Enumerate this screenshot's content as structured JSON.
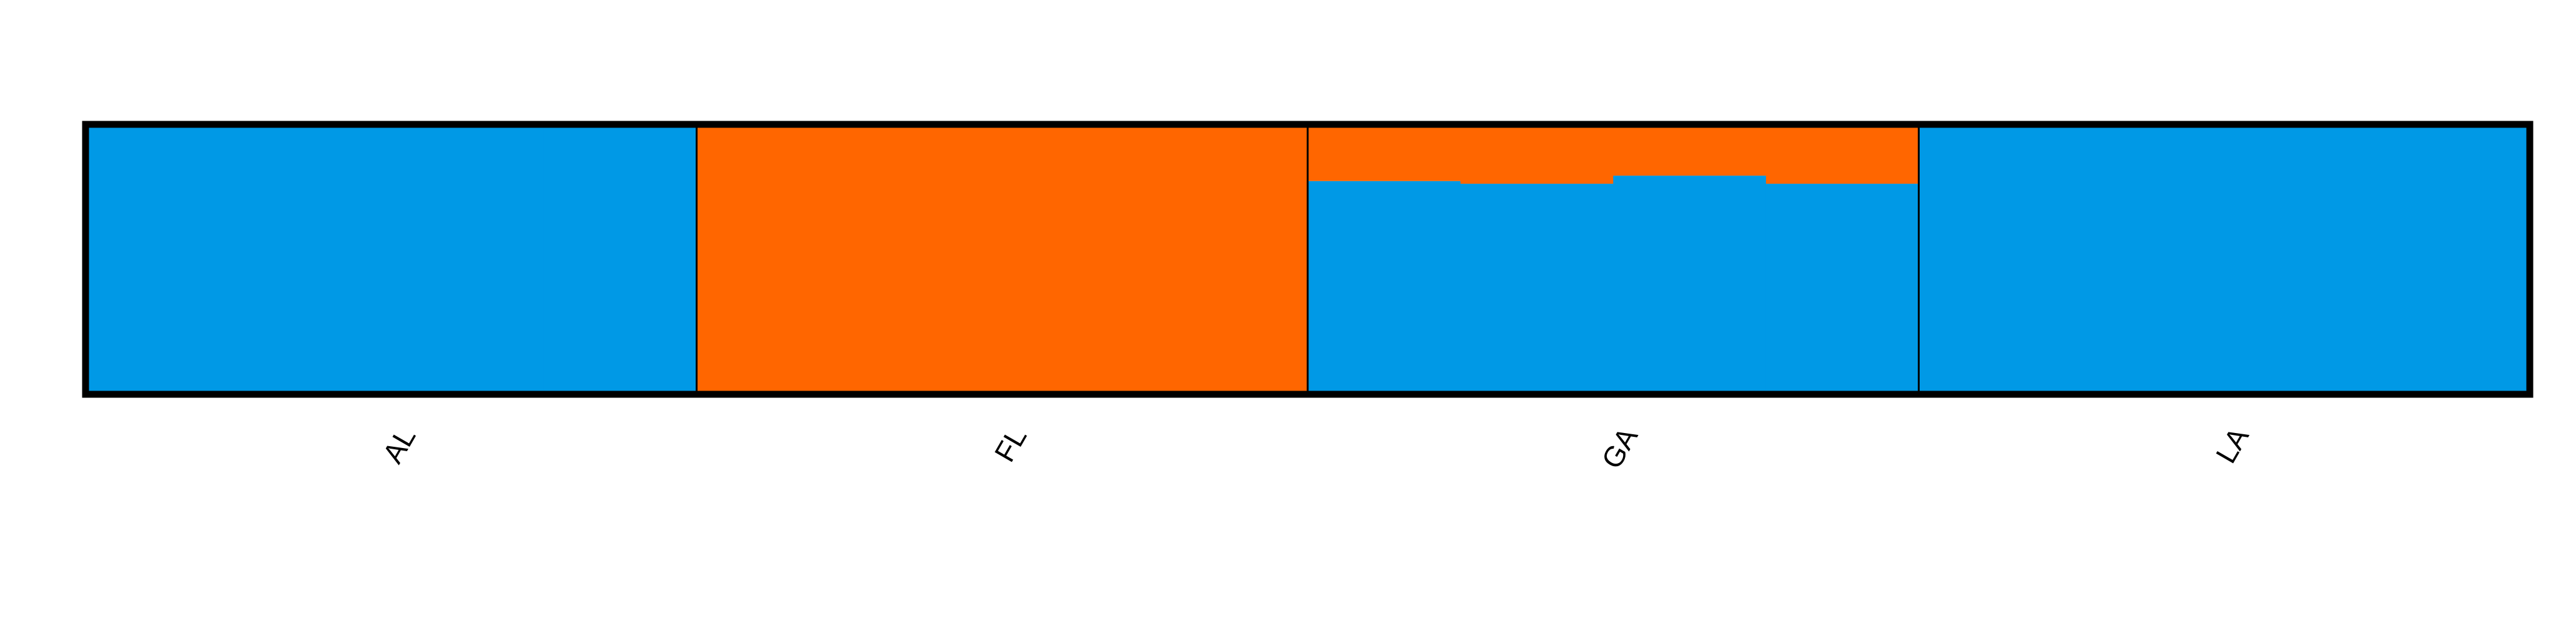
{
  "chart_data": {
    "type": "bar",
    "subtype": "stacked-admixture",
    "title": "",
    "xlabel": "",
    "ylabel": "",
    "ylim": [
      0,
      1
    ],
    "grid": false,
    "legend": "none",
    "colors": {
      "cluster_1": "#0099E6",
      "cluster_2": "#FF6600",
      "frame": "#000000",
      "separator": "#000000"
    },
    "groups": [
      {
        "label": "AL",
        "cluster_1": [
          1.0,
          1.0,
          1.0,
          1.0
        ],
        "cluster_2": [
          0.0,
          0.0,
          0.0,
          0.0
        ]
      },
      {
        "label": "FL",
        "cluster_1": [
          0.0,
          0.0,
          0.0,
          0.0
        ],
        "cluster_2": [
          1.0,
          1.0,
          1.0,
          1.0
        ]
      },
      {
        "label": "GA",
        "cluster_1": [
          0.79,
          0.78,
          0.81,
          0.78
        ],
        "cluster_2": [
          0.21,
          0.22,
          0.19,
          0.22
        ]
      },
      {
        "label": "LA",
        "cluster_1": [
          1.0,
          1.0,
          1.0,
          1.0
        ],
        "cluster_2": [
          0.0,
          0.0,
          0.0,
          0.0
        ]
      }
    ]
  }
}
